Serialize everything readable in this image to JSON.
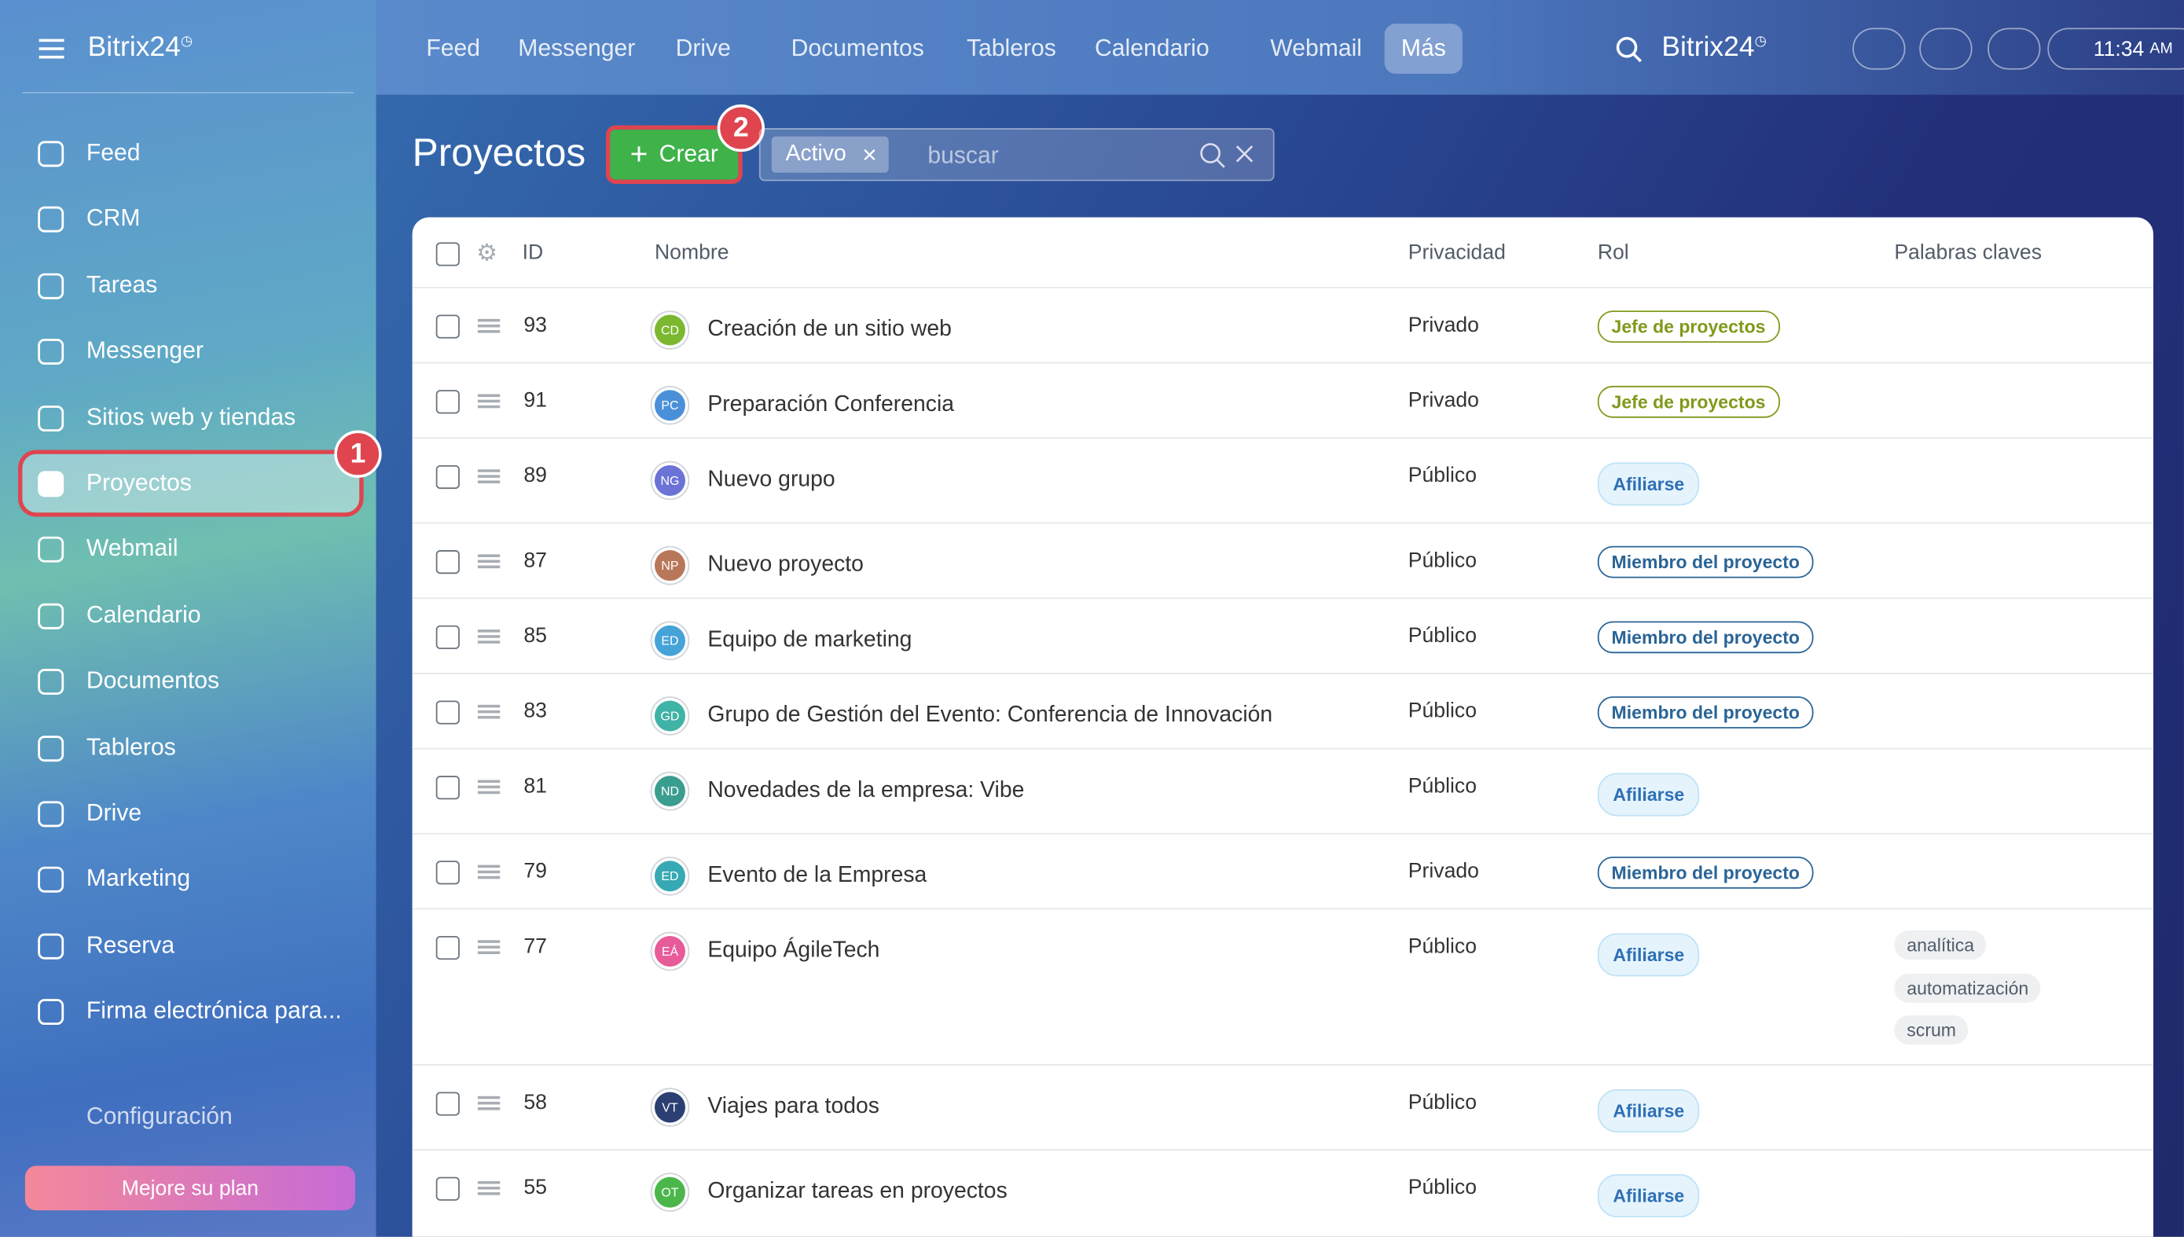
{
  "sidebar": {
    "brand": "Bitrix24",
    "items": [
      "Feed",
      "CRM",
      "Tareas",
      "Messenger",
      "Sitios web y tiendas",
      "Proyectos",
      "Webmail",
      "Calendario",
      "Documentos",
      "Tableros",
      "Drive",
      "Marketing",
      "Reserva",
      "Firma electrónica para..."
    ],
    "active_index": 5,
    "badge": "1",
    "settings": "Configuración",
    "upgrade": "Mejore su plan"
  },
  "topnav": {
    "items": [
      "Feed",
      "Messenger",
      "Drive",
      "Documentos",
      "Tableros",
      "Calendario",
      "Webmail",
      "Más"
    ],
    "brand": "Bitrix24",
    "time": "11:34",
    "ampm": "AM"
  },
  "toolbar": {
    "title": "Proyectos",
    "create": "Crear",
    "badge": "2",
    "filter": "Activo",
    "search_placeholder": "buscar"
  },
  "table": {
    "headers": [
      "ID",
      "Nombre",
      "Privacidad",
      "Rol",
      "Palabras claves"
    ],
    "rows": [
      {
        "id": 93,
        "initials": "CD",
        "avatar_color": "#7cb82f",
        "name": "Creación de un sitio web",
        "privacy": "Privado",
        "role": "Jefe de proyectos",
        "role_color": "#7f9a1a",
        "keywords": []
      },
      {
        "id": 91,
        "initials": "PC",
        "avatar_color": "#4a90d9",
        "name": "Preparación Conferencia",
        "privacy": "Privado",
        "role": "Jefe de proyectos",
        "role_color": "#7f9a1a",
        "keywords": []
      },
      {
        "id": 89,
        "initials": "NG",
        "avatar_color": "#6b73d6",
        "name": "Nuevo grupo",
        "privacy": "Público",
        "role": "Afiliarse",
        "role_color": "#2f6fb5",
        "keywords": []
      },
      {
        "id": 87,
        "initials": "NP",
        "avatar_color": "#b9775a",
        "name": "Nuevo proyecto",
        "privacy": "Público",
        "role": "Miembro del proyecto",
        "role_color": "#2a6496",
        "keywords": []
      },
      {
        "id": 85,
        "initials": "ED",
        "avatar_color": "#45a3d8",
        "name": "Equipo de marketing",
        "privacy": "Público",
        "role": "Miembro del proyecto",
        "role_color": "#2a6496",
        "keywords": []
      },
      {
        "id": 83,
        "initials": "GD",
        "avatar_color": "#3fb3a6",
        "name": "Grupo de Gestión del Evento: Conferencia de Innovación",
        "privacy": "Público",
        "role": "Miembro del proyecto",
        "role_color": "#2a6496",
        "keywords": []
      },
      {
        "id": 81,
        "initials": "ND",
        "avatar_color": "#3a9e8f",
        "name": "Novedades de la empresa: Vibe",
        "privacy": "Público",
        "role": "Afiliarse",
        "role_color": "#2f6fb5",
        "keywords": []
      },
      {
        "id": 79,
        "initials": "ED",
        "avatar_color": "#36a9b4",
        "name": "Evento de la Empresa",
        "privacy": "Privado",
        "role": "Miembro del proyecto",
        "role_color": "#2a6496",
        "keywords": []
      },
      {
        "id": 77,
        "initials": "EÁ",
        "avatar_color": "#e85b9a",
        "name": "Equipo ÁgileTech",
        "privacy": "Público",
        "role": "Afiliarse",
        "role_color": "#2f6fb5",
        "keywords": [
          "analítica",
          "automatización",
          "scrum"
        ]
      },
      {
        "id": 58,
        "initials": "VT",
        "avatar_color": "#2b3f73",
        "name": "Viajes para todos",
        "privacy": "Público",
        "role": "Afiliarse",
        "role_color": "#2f6fb5",
        "keywords": []
      },
      {
        "id": 55,
        "initials": "OT",
        "avatar_color": "#4bb74a",
        "name": "Organizar tareas en proyectos",
        "privacy": "Público",
        "role": "Afiliarse",
        "role_color": "#2f6fb5",
        "keywords": []
      }
    ]
  }
}
